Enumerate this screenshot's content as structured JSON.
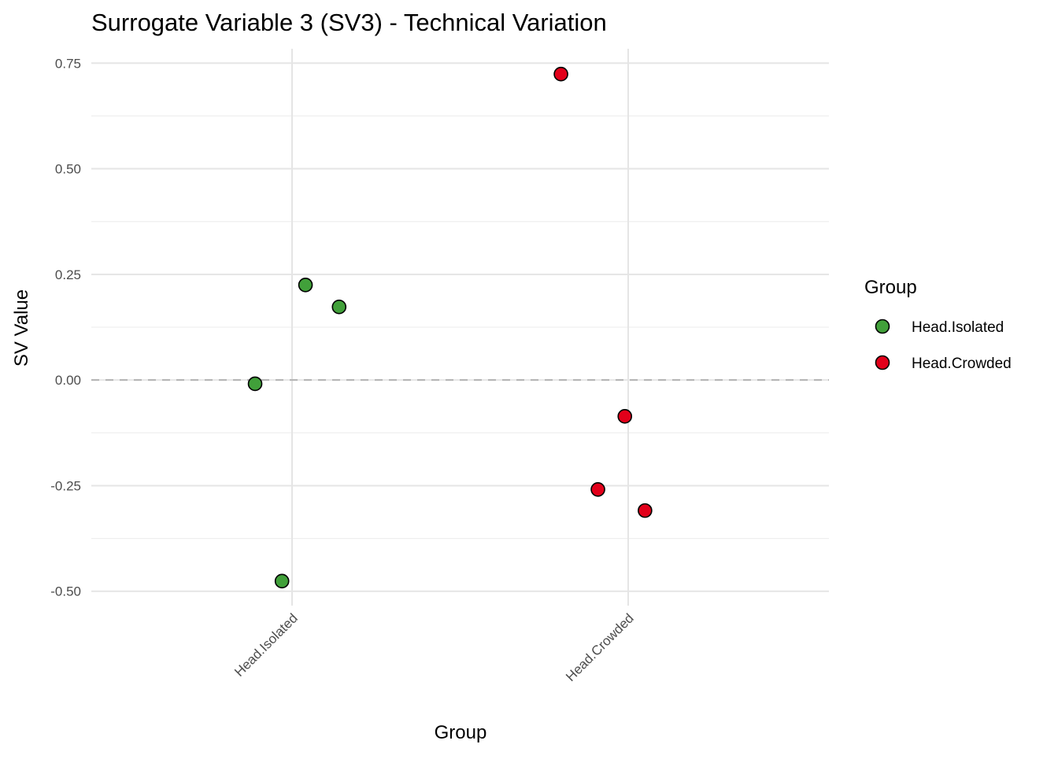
{
  "chart_data": {
    "type": "scatter",
    "title": "Surrogate Variable 3 (SV3) - Technical Variation",
    "xlabel": "Group",
    "ylabel": "SV Value",
    "categories": [
      "Head.Isolated",
      "Head.Crowded"
    ],
    "yticks": [
      0.75,
      0.5,
      0.25,
      0.0,
      -0.25,
      -0.5
    ],
    "ytick_labels": [
      "0.75",
      "0.50",
      "0.25",
      "0.00",
      "-0.25",
      "-0.50"
    ],
    "ylim": [
      -0.534,
      0.784
    ],
    "grid": true,
    "reference_line": {
      "y": 0,
      "style": "dashed",
      "color": "#B3B3B3"
    },
    "legend": {
      "title": "Group",
      "placement": "right"
    },
    "series": [
      {
        "name": "Head.Isolated",
        "color": "#41A03A",
        "points": [
          {
            "category": "Head.Isolated",
            "jitter": 0.04,
            "y": 0.225
          },
          {
            "category": "Head.Isolated",
            "jitter": 0.14,
            "y": 0.173
          },
          {
            "category": "Head.Isolated",
            "jitter": -0.11,
            "y": -0.009
          },
          {
            "category": "Head.Isolated",
            "jitter": -0.03,
            "y": -0.476
          }
        ]
      },
      {
        "name": "Head.Crowded",
        "color": "#E2001A",
        "points": [
          {
            "category": "Head.Crowded",
            "jitter": -0.2,
            "y": 0.724
          },
          {
            "category": "Head.Crowded",
            "jitter": -0.01,
            "y": -0.086
          },
          {
            "category": "Head.Crowded",
            "jitter": -0.09,
            "y": -0.259
          },
          {
            "category": "Head.Crowded",
            "jitter": 0.05,
            "y": -0.309
          }
        ]
      }
    ]
  }
}
